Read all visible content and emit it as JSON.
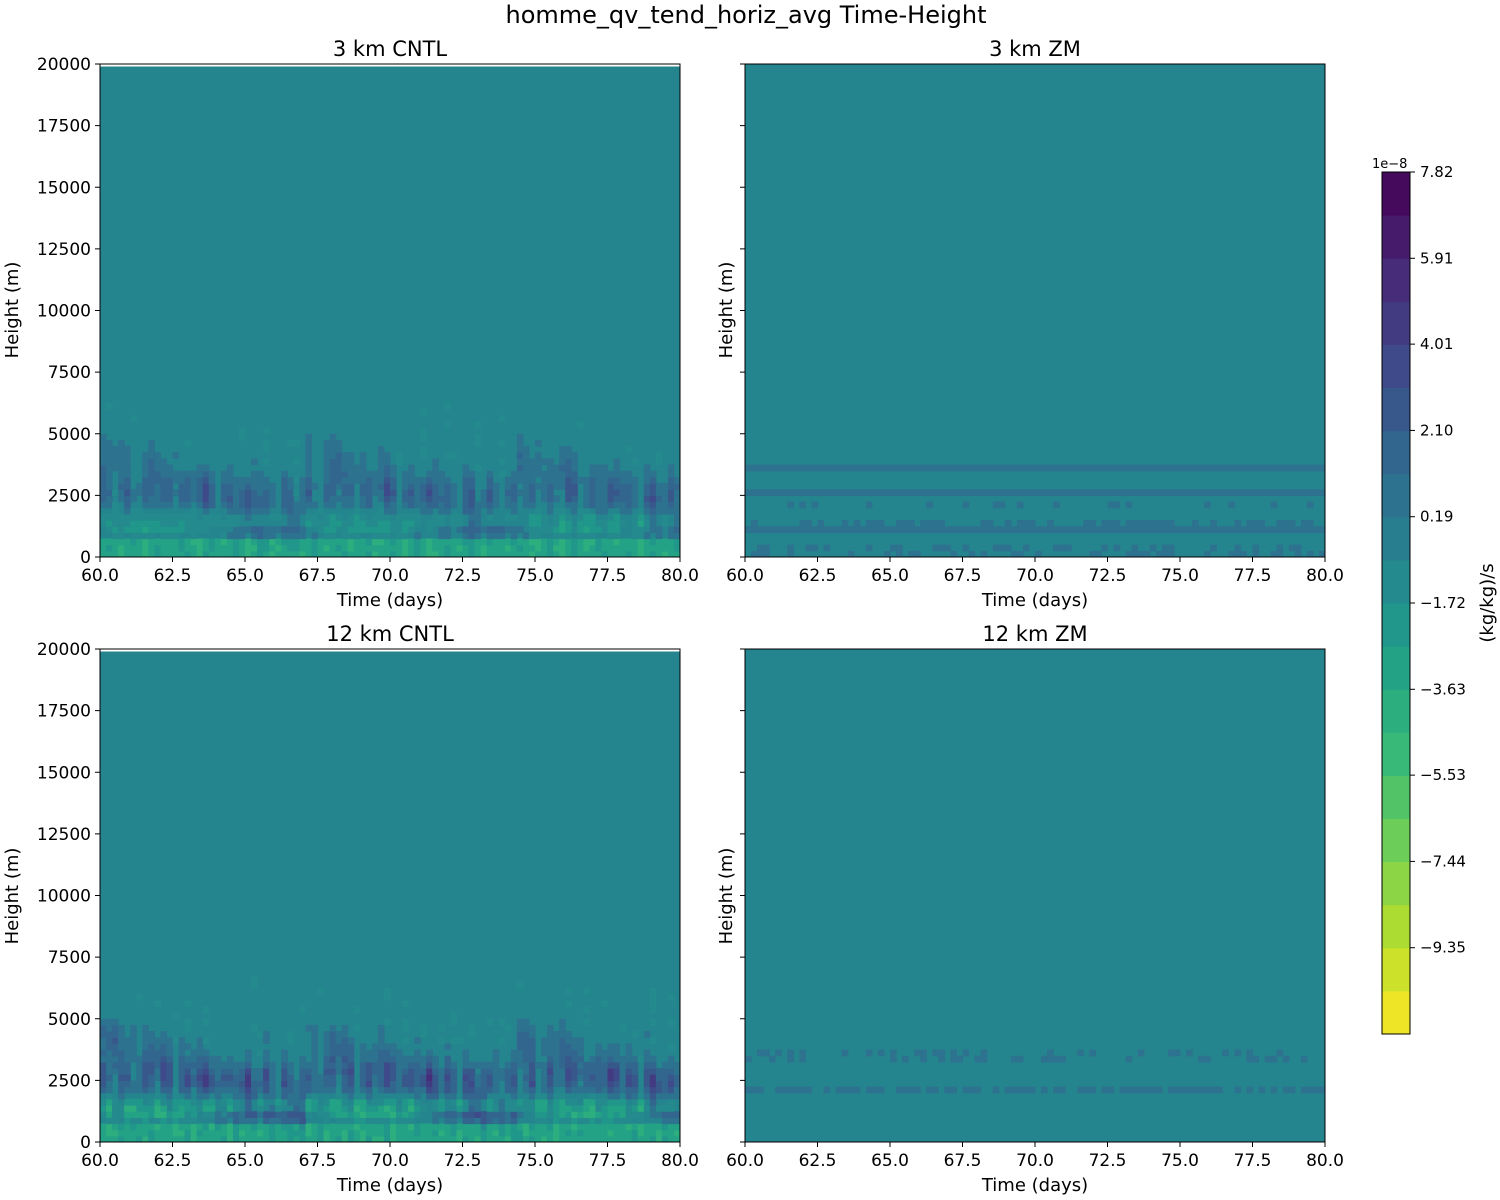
{
  "chart_data": {
    "type": "heatmap",
    "title": "homme_qv_tend_horiz_avg Time-Height",
    "xlabel": "Time (days)",
    "ylabel": "Height (m)",
    "xlim": [
      60.0,
      80.0
    ],
    "ylim": [
      0,
      20000
    ],
    "xticks": [
      "60.0",
      "62.5",
      "65.0",
      "67.5",
      "70.0",
      "72.5",
      "75.0",
      "77.5",
      "80.0"
    ],
    "yticks": [
      "0",
      "2500",
      "5000",
      "7500",
      "10000",
      "12500",
      "15000",
      "17500",
      "20000"
    ],
    "panels": [
      {
        "title": "3 km CNTL",
        "show_yticklabels": true
      },
      {
        "title": "3 km ZM",
        "show_yticklabels": false
      },
      {
        "title": "12 km CNTL",
        "show_yticklabels": true
      },
      {
        "title": "12 km ZM",
        "show_yticklabels": false
      }
    ],
    "colorbar": {
      "label": "(kg/kg)/s",
      "exponent": "1e−8",
      "colormap": "viridis_r",
      "range": [
        -11.26,
        7.82
      ],
      "tick_values": [
        7.82,
        5.91,
        4.01,
        2.1,
        0.19,
        -1.72,
        -3.63,
        -5.53,
        -7.44,
        -9.35
      ],
      "tick_labels": [
        "7.82",
        "5.91",
        "4.01",
        "2.10",
        "0.19",
        "−1.72",
        "−3.63",
        "−5.53",
        "−7.44",
        "−9.35"
      ],
      "levels": 20
    }
  },
  "colors": {
    "background_field": "#25858e",
    "positive_max": "#440154",
    "negative_max": "#fde725"
  }
}
